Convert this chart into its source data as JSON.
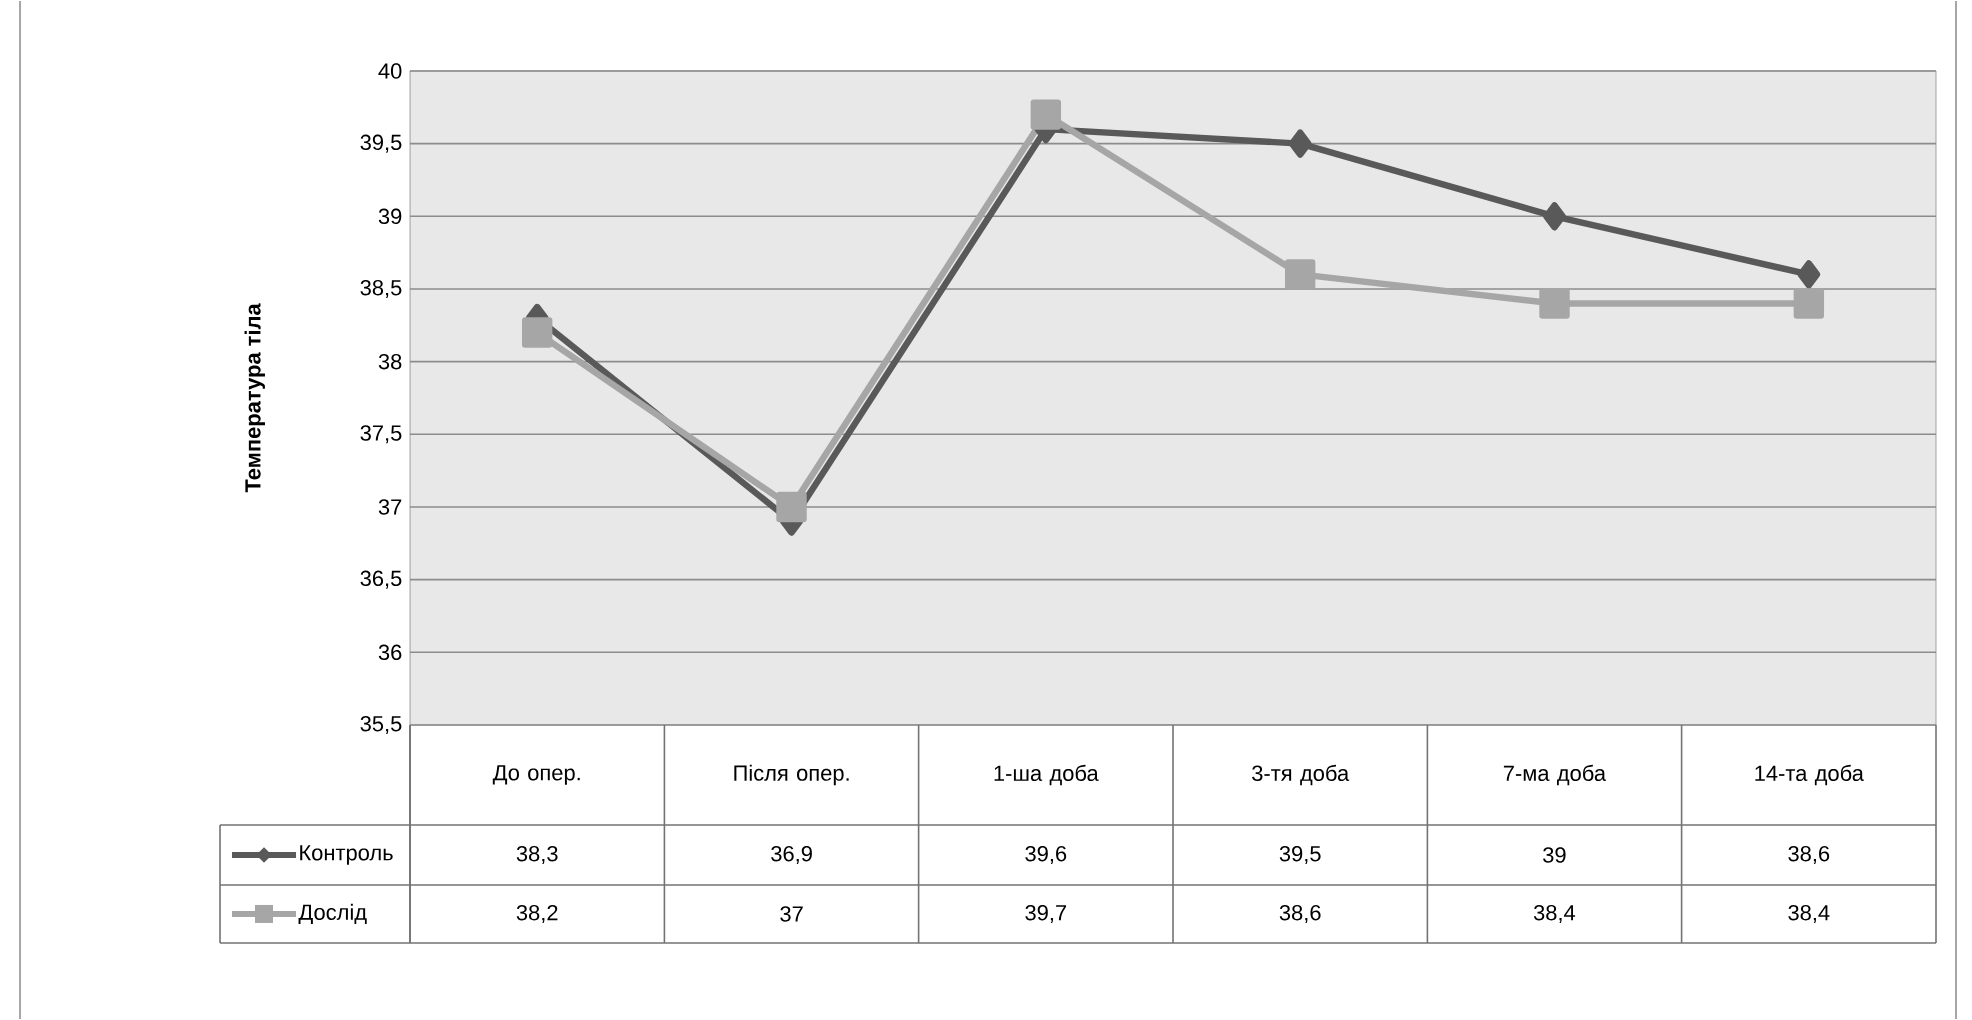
{
  "chart_data": {
    "type": "line",
    "ylabel": "Температура тіла",
    "categories": [
      "До опер.",
      "Після опер.",
      "1-ша доба",
      "3-тя доба",
      "7-ма доба",
      "14-та доба"
    ],
    "series": [
      {
        "name": "Контроль",
        "color": "#595959",
        "marker": "diamond",
        "values": [
          38.3,
          36.9,
          39.6,
          39.5,
          39,
          38.6
        ],
        "value_labels": [
          "38,3",
          "36,9",
          "39,6",
          "39,5",
          "39",
          "38,6"
        ]
      },
      {
        "name": "Дослід",
        "color": "#a6a6a6",
        "marker": "square",
        "values": [
          38.2,
          37,
          39.7,
          38.6,
          38.4,
          38.4
        ],
        "value_labels": [
          "38,2",
          "37",
          "39,7",
          "38,6",
          "38,4",
          "38,4"
        ]
      }
    ],
    "ylim": [
      35.5,
      40
    ],
    "yticks": [
      {
        "value": 35.5,
        "label": "35,5"
      },
      36,
      {
        "value": 36.5,
        "label": "36,5"
      },
      37,
      {
        "value": 37.5,
        "label": "37,5"
      },
      38,
      {
        "value": 38.5,
        "label": "38,5"
      },
      39,
      {
        "value": 39.5,
        "label": "39,5"
      },
      40
    ],
    "grid": "y",
    "legend": "left",
    "line_style": "solid"
  }
}
